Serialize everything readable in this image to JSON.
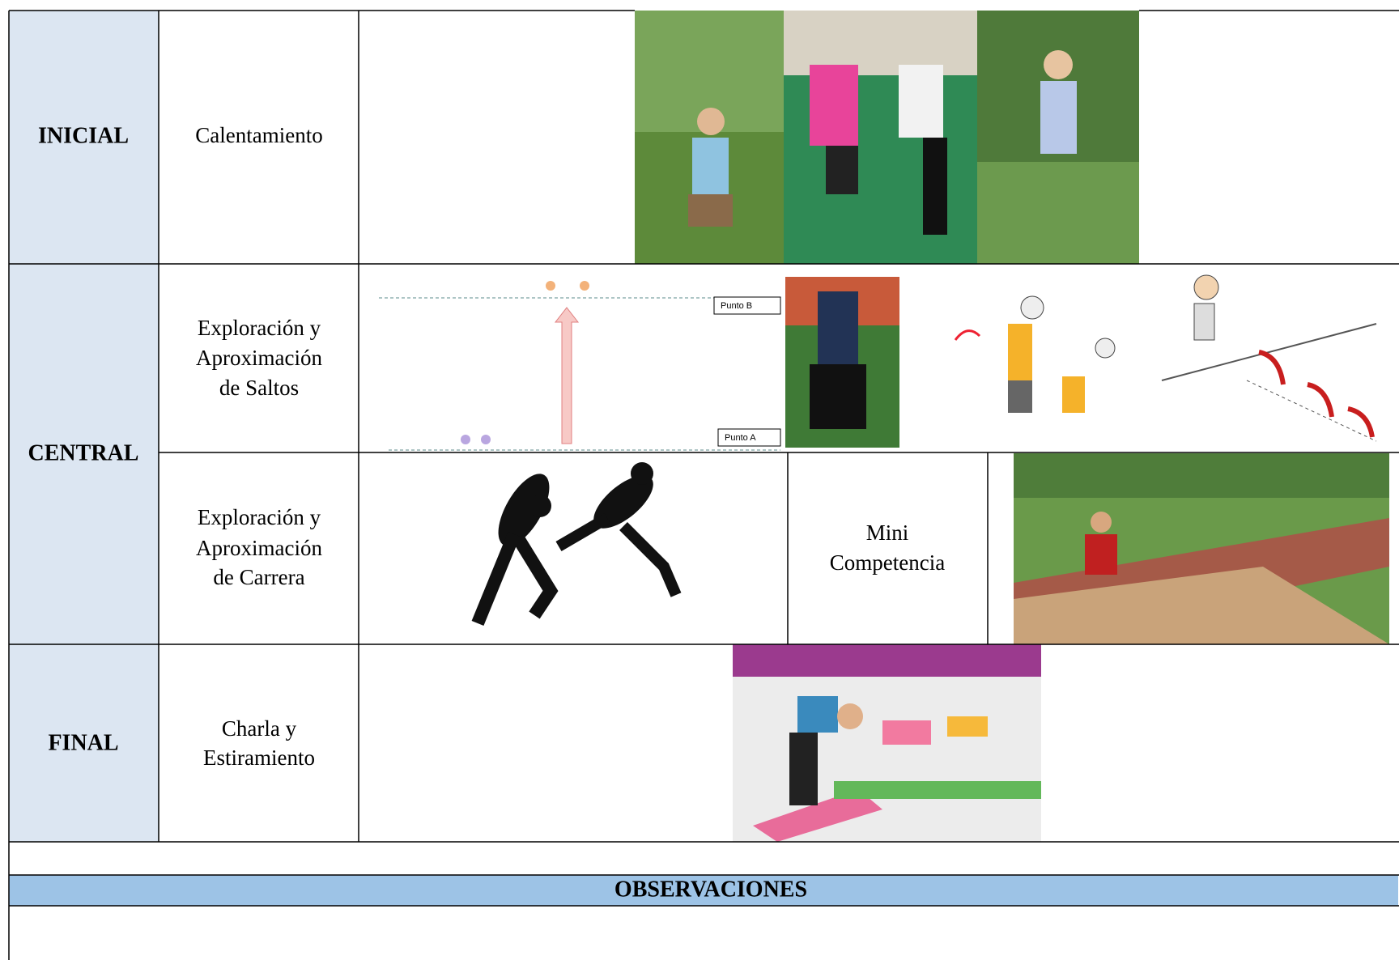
{
  "phases": [
    "INICIAL",
    "CENTRAL",
    "FINAL"
  ],
  "activities": [
    [
      "Calentamiento"
    ],
    [
      "Exploración y",
      "Aproximación",
      "de Saltos"
    ],
    [
      "Exploración y",
      "Aproximación",
      "de Carrera"
    ],
    [
      "Charla y",
      "Estiramiento"
    ]
  ],
  "mini_competition": [
    "Mini",
    "Competencia"
  ],
  "diagram": {
    "top_label": "Punto B",
    "bottom_label": "Punto A"
  },
  "observations": {
    "title": "OBSERVACIONES"
  }
}
